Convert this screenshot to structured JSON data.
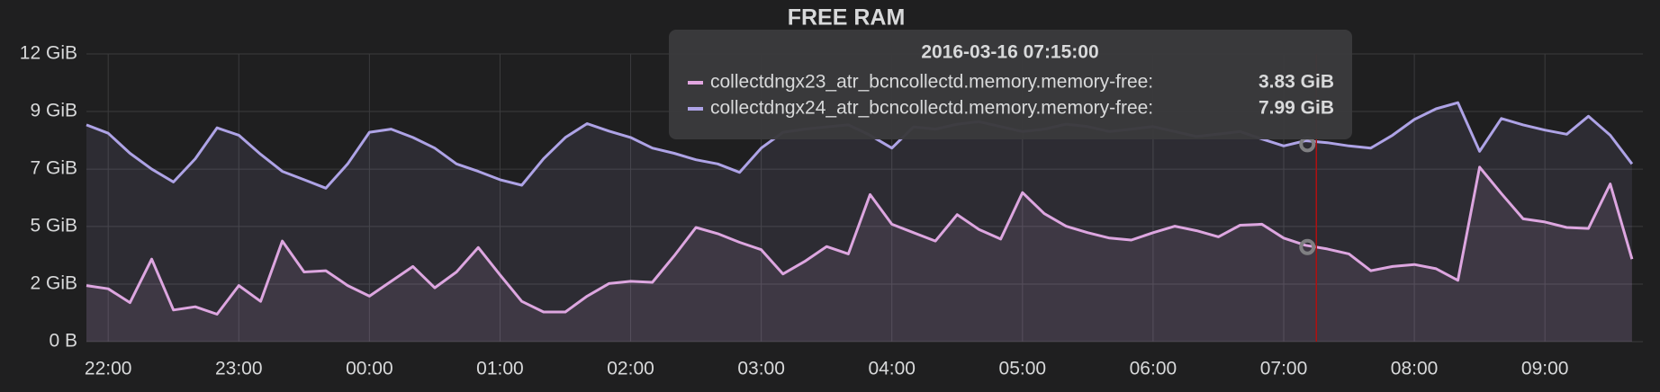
{
  "chart_data": {
    "type": "line",
    "title": "FREE RAM",
    "x": [
      "2016-03-15 21:50",
      "2016-03-15 22:00",
      "2016-03-15 22:10",
      "2016-03-15 22:20",
      "2016-03-15 22:30",
      "2016-03-15 22:40",
      "2016-03-15 22:50",
      "2016-03-15 23:00",
      "2016-03-15 23:10",
      "2016-03-15 23:20",
      "2016-03-15 23:30",
      "2016-03-15 23:40",
      "2016-03-15 23:50",
      "2016-03-16 00:00",
      "2016-03-16 00:10",
      "2016-03-16 00:20",
      "2016-03-16 00:30",
      "2016-03-16 00:40",
      "2016-03-16 00:50",
      "2016-03-16 01:00",
      "2016-03-16 01:10",
      "2016-03-16 01:20",
      "2016-03-16 01:30",
      "2016-03-16 01:40",
      "2016-03-16 01:50",
      "2016-03-16 02:00",
      "2016-03-16 02:10",
      "2016-03-16 02:20",
      "2016-03-16 02:30",
      "2016-03-16 02:40",
      "2016-03-16 02:50",
      "2016-03-16 03:00",
      "2016-03-16 03:10",
      "2016-03-16 03:20",
      "2016-03-16 03:30",
      "2016-03-16 03:40",
      "2016-03-16 03:50",
      "2016-03-16 04:00",
      "2016-03-16 04:10",
      "2016-03-16 04:20",
      "2016-03-16 04:30",
      "2016-03-16 04:40",
      "2016-03-16 04:50",
      "2016-03-16 05:00",
      "2016-03-16 05:10",
      "2016-03-16 05:20",
      "2016-03-16 05:30",
      "2016-03-16 05:40",
      "2016-03-16 05:50",
      "2016-03-16 06:00",
      "2016-03-16 06:10",
      "2016-03-16 06:20",
      "2016-03-16 06:30",
      "2016-03-16 06:40",
      "2016-03-16 06:50",
      "2016-03-16 07:00",
      "2016-03-16 07:10",
      "2016-03-16 07:20",
      "2016-03-16 07:30",
      "2016-03-16 07:40",
      "2016-03-16 07:50",
      "2016-03-16 08:00",
      "2016-03-16 08:10",
      "2016-03-16 08:20",
      "2016-03-16 08:30",
      "2016-03-16 08:40",
      "2016-03-16 08:50",
      "2016-03-16 09:00",
      "2016-03-16 09:10",
      "2016-03-16 09:20",
      "2016-03-16 09:30",
      "2016-03-16 09:40"
    ],
    "series": [
      {
        "name": "collectdngx23_atr_bcncollectd.memory.memory-free:",
        "color": "#e2a6e0",
        "values": [
          2.27,
          2.14,
          1.58,
          3.34,
          1.28,
          1.41,
          1.11,
          2.27,
          1.63,
          4.07,
          2.82,
          2.87,
          2.27,
          1.84,
          2.44,
          3.04,
          2.18,
          2.82,
          3.81,
          2.7,
          1.63,
          1.2,
          1.2,
          1.84,
          2.35,
          2.44,
          2.4,
          3.47,
          4.62,
          4.37,
          4.02,
          3.72,
          2.74,
          3.25,
          3.85,
          3.55,
          5.95,
          4.75,
          4.41,
          4.07,
          5.14,
          4.54,
          4.15,
          6.03,
          5.18,
          4.67,
          4.41,
          4.19,
          4.11,
          4.41,
          4.67,
          4.49,
          4.24,
          4.71,
          4.75,
          4.19,
          3.9,
          3.75,
          3.55,
          2.87,
          3.04,
          3.12,
          2.95,
          2.48,
          7.06,
          5.99,
          4.97,
          4.84,
          4.62,
          4.58,
          6.38,
          3.34
        ]
      },
      {
        "name": "collectdngx24_atr_bcncollectd.memory.memory-free:",
        "color": "#aea3e6",
        "values": [
          8.77,
          8.43,
          7.62,
          6.98,
          6.46,
          7.4,
          8.65,
          8.35,
          7.58,
          6.89,
          6.55,
          6.21,
          7.19,
          8.47,
          8.6,
          8.26,
          7.83,
          7.19,
          6.89,
          6.55,
          6.33,
          7.4,
          8.26,
          8.82,
          8.52,
          8.26,
          7.83,
          7.62,
          7.36,
          7.19,
          6.85,
          7.83,
          8.47,
          8.6,
          8.69,
          8.77,
          8.35,
          7.83,
          8.69,
          8.6,
          8.8,
          8.9,
          8.7,
          8.5,
          8.6,
          8.8,
          8.7,
          8.5,
          8.6,
          8.7,
          8.5,
          8.3,
          8.4,
          8.5,
          8.2,
          7.92,
          8.13,
          8.05,
          7.92,
          7.83,
          8.35,
          8.99,
          9.42,
          9.67,
          7.7,
          9.03,
          8.77,
          8.56,
          8.39,
          9.12,
          8.35,
          7.19
        ]
      }
    ],
    "xlim": [
      "2016-03-15 21:50",
      "2016-03-16 09:45"
    ],
    "xticks": [
      {
        "value": "2016-03-15 22:00",
        "label": "22:00"
      },
      {
        "value": "2016-03-15 23:00",
        "label": "23:00"
      },
      {
        "value": "2016-03-16 00:00",
        "label": "00:00"
      },
      {
        "value": "2016-03-16 01:00",
        "label": "01:00"
      },
      {
        "value": "2016-03-16 02:00",
        "label": "02:00"
      },
      {
        "value": "2016-03-16 03:00",
        "label": "03:00"
      },
      {
        "value": "2016-03-16 04:00",
        "label": "04:00"
      },
      {
        "value": "2016-03-16 05:00",
        "label": "05:00"
      },
      {
        "value": "2016-03-16 06:00",
        "label": "06:00"
      },
      {
        "value": "2016-03-16 07:00",
        "label": "07:00"
      },
      {
        "value": "2016-03-16 08:00",
        "label": "08:00"
      },
      {
        "value": "2016-03-16 09:00",
        "label": "09:00"
      }
    ],
    "ylim": [
      0,
      11.64
    ],
    "yticks": [
      {
        "value": 0,
        "label": "0 B"
      },
      {
        "value": 2.33,
        "label": "2 GiB"
      },
      {
        "value": 4.66,
        "label": "5 GiB"
      },
      {
        "value": 6.98,
        "label": "7 GiB"
      },
      {
        "value": 9.31,
        "label": "9 GiB"
      },
      {
        "value": 11.64,
        "label": "12 GiB"
      }
    ],
    "grid": true,
    "tooltip": {
      "time": "2016-03-16 07:15:00",
      "values": [
        3.83,
        7.99
      ],
      "value_labels": [
        "3.83 GiB",
        "7.99 GiB"
      ]
    }
  }
}
